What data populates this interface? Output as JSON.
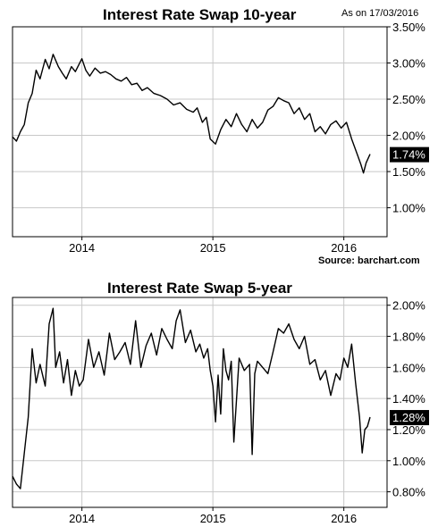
{
  "chart_data": [
    {
      "type": "line",
      "title": "Interest Rate Swap 10-year",
      "as_of": "As on 17/03/2016",
      "source": "Source: barchart.com",
      "ylim": [
        0.6,
        3.5
      ],
      "yticks": [
        "3.50%",
        "3.00%",
        "2.50%",
        "2.00%",
        "1.50%",
        "1.00%"
      ],
      "ytick_values": [
        3.5,
        3.0,
        2.5,
        2.0,
        1.5,
        1.0
      ],
      "xticks": [
        "2014",
        "2015",
        "2016"
      ],
      "xtick_values": [
        2014.0,
        2015.0,
        2016.0
      ],
      "xlim": [
        2013.47,
        2016.33
      ],
      "current_value_label": "1.74%",
      "current_value": 1.74,
      "grid": true,
      "series": [
        {
          "x": [
            2013.47,
            2013.5,
            2013.53,
            2013.56,
            2013.59,
            2013.62,
            2013.65,
            2013.68,
            2013.72,
            2013.75,
            2013.78,
            2013.82,
            2013.85,
            2013.88,
            2013.92,
            2013.95,
            2014.0,
            2014.03,
            2014.06,
            2014.1,
            2014.14,
            2014.18,
            2014.22,
            2014.26,
            2014.3,
            2014.34,
            2014.38,
            2014.42,
            2014.46,
            2014.5,
            2014.55,
            2014.6,
            2014.65,
            2014.7,
            2014.75,
            2014.8,
            2014.85,
            2014.88,
            2014.92,
            2014.95,
            2014.98,
            2015.02,
            2015.06,
            2015.1,
            2015.14,
            2015.18,
            2015.22,
            2015.26,
            2015.3,
            2015.34,
            2015.38,
            2015.42,
            2015.46,
            2015.5,
            2015.54,
            2015.58,
            2015.62,
            2015.66,
            2015.7,
            2015.74,
            2015.78,
            2015.82,
            2015.86,
            2015.9,
            2015.94,
            2015.98,
            2016.02,
            2016.06,
            2016.1,
            2016.13,
            2016.15,
            2016.17,
            2016.2
          ],
          "values": [
            1.98,
            1.92,
            2.05,
            2.15,
            2.45,
            2.58,
            2.9,
            2.78,
            3.05,
            2.92,
            3.12,
            2.95,
            2.86,
            2.78,
            2.95,
            2.88,
            3.06,
            2.9,
            2.82,
            2.93,
            2.86,
            2.88,
            2.84,
            2.78,
            2.75,
            2.8,
            2.7,
            2.72,
            2.62,
            2.66,
            2.58,
            2.55,
            2.5,
            2.42,
            2.45,
            2.36,
            2.32,
            2.38,
            2.18,
            2.25,
            1.95,
            1.88,
            2.08,
            2.22,
            2.12,
            2.3,
            2.15,
            2.05,
            2.22,
            2.1,
            2.18,
            2.35,
            2.4,
            2.52,
            2.48,
            2.45,
            2.3,
            2.38,
            2.22,
            2.3,
            2.05,
            2.12,
            2.02,
            2.15,
            2.2,
            2.1,
            2.18,
            1.95,
            1.75,
            1.6,
            1.48,
            1.62,
            1.74
          ]
        }
      ]
    },
    {
      "type": "line",
      "title": "Interest Rate Swap 5-year",
      "ylim": [
        0.7,
        2.05
      ],
      "yticks": [
        "2.00%",
        "1.80%",
        "1.60%",
        "1.40%",
        "1.20%",
        "1.00%",
        "0.80%"
      ],
      "ytick_values": [
        2.0,
        1.8,
        1.6,
        1.4,
        1.2,
        1.0,
        0.8
      ],
      "xticks": [
        "2014",
        "2015",
        "2016"
      ],
      "xtick_values": [
        2014.0,
        2015.0,
        2016.0
      ],
      "xlim": [
        2013.47,
        2016.33
      ],
      "current_value_label": "1.28%",
      "current_value": 1.28,
      "grid": true,
      "series": [
        {
          "x": [
            2013.47,
            2013.5,
            2013.53,
            2013.56,
            2013.59,
            2013.62,
            2013.65,
            2013.68,
            2013.72,
            2013.75,
            2013.78,
            2013.8,
            2013.83,
            2013.86,
            2013.89,
            2013.92,
            2013.95,
            2013.98,
            2014.01,
            2014.05,
            2014.09,
            2014.13,
            2014.17,
            2014.21,
            2014.25,
            2014.29,
            2014.33,
            2014.37,
            2014.41,
            2014.45,
            2014.49,
            2014.53,
            2014.57,
            2014.61,
            2014.65,
            2014.69,
            2014.72,
            2014.75,
            2014.79,
            2014.83,
            2014.87,
            2014.9,
            2014.93,
            2014.96,
            2014.98,
            2015.0,
            2015.02,
            2015.04,
            2015.06,
            2015.08,
            2015.1,
            2015.12,
            2015.14,
            2015.16,
            2015.2,
            2015.24,
            2015.28,
            2015.3,
            2015.32,
            2015.34,
            2015.38,
            2015.42,
            2015.46,
            2015.5,
            2015.54,
            2015.58,
            2015.62,
            2015.66,
            2015.7,
            2015.74,
            2015.78,
            2015.82,
            2015.86,
            2015.9,
            2015.94,
            2015.97,
            2016.0,
            2016.03,
            2016.06,
            2016.09,
            2016.12,
            2016.14,
            2016.16,
            2016.18,
            2016.2
          ],
          "values": [
            0.9,
            0.85,
            0.82,
            1.05,
            1.28,
            1.72,
            1.5,
            1.62,
            1.48,
            1.88,
            1.98,
            1.6,
            1.7,
            1.5,
            1.65,
            1.42,
            1.58,
            1.48,
            1.52,
            1.78,
            1.6,
            1.7,
            1.55,
            1.82,
            1.65,
            1.7,
            1.76,
            1.62,
            1.9,
            1.6,
            1.74,
            1.82,
            1.68,
            1.85,
            1.78,
            1.72,
            1.9,
            1.97,
            1.76,
            1.84,
            1.7,
            1.75,
            1.66,
            1.72,
            1.58,
            1.48,
            1.25,
            1.55,
            1.3,
            1.72,
            1.58,
            1.52,
            1.64,
            1.12,
            1.66,
            1.58,
            1.62,
            1.04,
            1.56,
            1.64,
            1.6,
            1.56,
            1.7,
            1.85,
            1.82,
            1.88,
            1.78,
            1.72,
            1.8,
            1.62,
            1.65,
            1.52,
            1.58,
            1.42,
            1.56,
            1.52,
            1.66,
            1.6,
            1.75,
            1.5,
            1.28,
            1.05,
            1.2,
            1.22,
            1.28
          ]
        }
      ]
    }
  ]
}
